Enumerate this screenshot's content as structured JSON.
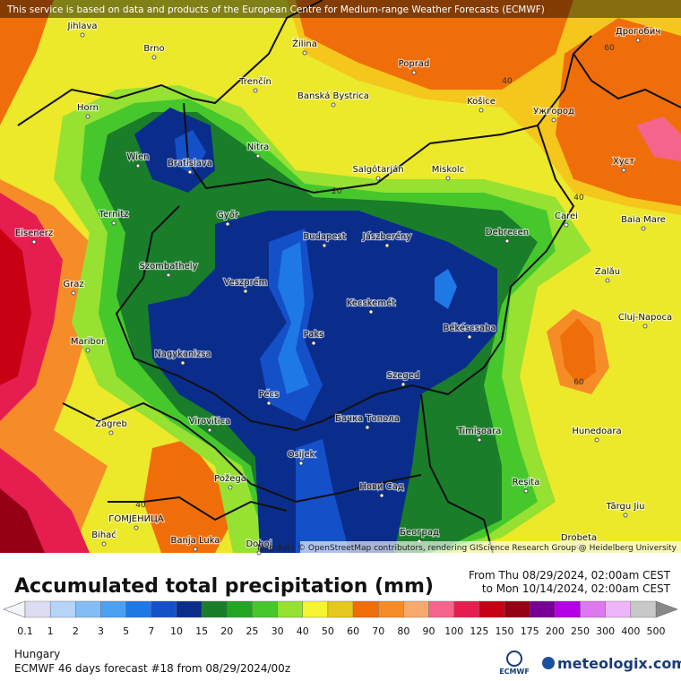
{
  "header": {
    "notice": "This service is based on data and products of the European Centre for Medium-range Weather Forecasts (ECMWF)",
    "attribution": "Map data © OpenStreetMap contributors, rendering GIScience Research Group @ Heidelberg University"
  },
  "cities": [
    "Jihlava",
    "Brno",
    "Žilina",
    "Poprad",
    "Дрогобич",
    "Trenčín",
    "Banská Bystrica",
    "Košice",
    "Ужгород",
    "Horn",
    "Nitra",
    "Wien",
    "Bratislava",
    "Salgótarján",
    "Miskolc",
    "Хуст",
    "Ternitz",
    "Győr",
    "Carei",
    "Baia Mare",
    "Eisenerz",
    "Budapest",
    "Jászberény",
    "Debrecen",
    "Szombathely",
    "Zalău",
    "Graz",
    "Veszprém",
    "Kecskemét",
    "Cluj-Napoca",
    "Maribor",
    "Paks",
    "Békéscsaba",
    "Nagykanizsa",
    "Pécs",
    "Szeged",
    "Бачка Топола",
    "Zagreb",
    "Virovitica",
    "Timișoara",
    "Hunedoara",
    "Osijek",
    "Požega",
    "Нови Сад",
    "Reșita",
    "Târgu Jiu",
    "ГОМЈЕНИЦА",
    "Bihać",
    "Banja Luka",
    "Doboj",
    "Београд",
    "Drobeta"
  ],
  "contour_labels": [
    60,
    40,
    20,
    40,
    60,
    40
  ],
  "legend": {
    "title": "Accumulated total precipitation (mm)",
    "period_from": "From Thu 08/29/2024, 02:00am CEST",
    "period_to": "to Mon 10/14/2024, 02:00am CEST",
    "labels": [
      0.1,
      1,
      2,
      3,
      5,
      7,
      10,
      15,
      20,
      25,
      30,
      40,
      50,
      60,
      70,
      80,
      90,
      100,
      125,
      150,
      175,
      200,
      250,
      300,
      400,
      500
    ],
    "colors": [
      "#dcdcf2",
      "#b4d4fa",
      "#82bef5",
      "#4ba0f0",
      "#1e78e6",
      "#1450c8",
      "#0a2d8c",
      "#1a7d2a",
      "#23a523",
      "#46c82d",
      "#96e132",
      "#f5f532",
      "#e6c81e",
      "#f06e0a",
      "#f58c28",
      "#f8aa6e",
      "#f5648c",
      "#e61e50",
      "#c80014",
      "#960014",
      "#780096",
      "#b400e6",
      "#dc78f0",
      "#f0b4fa",
      "#c8c8c8"
    ]
  },
  "footer": {
    "region": "Hungary",
    "model": "ECMWF 46 days forecast #18 from  08/29/2024/00z",
    "ecmwf_logo": "ECMWF",
    "brand": "meteologix.com"
  }
}
